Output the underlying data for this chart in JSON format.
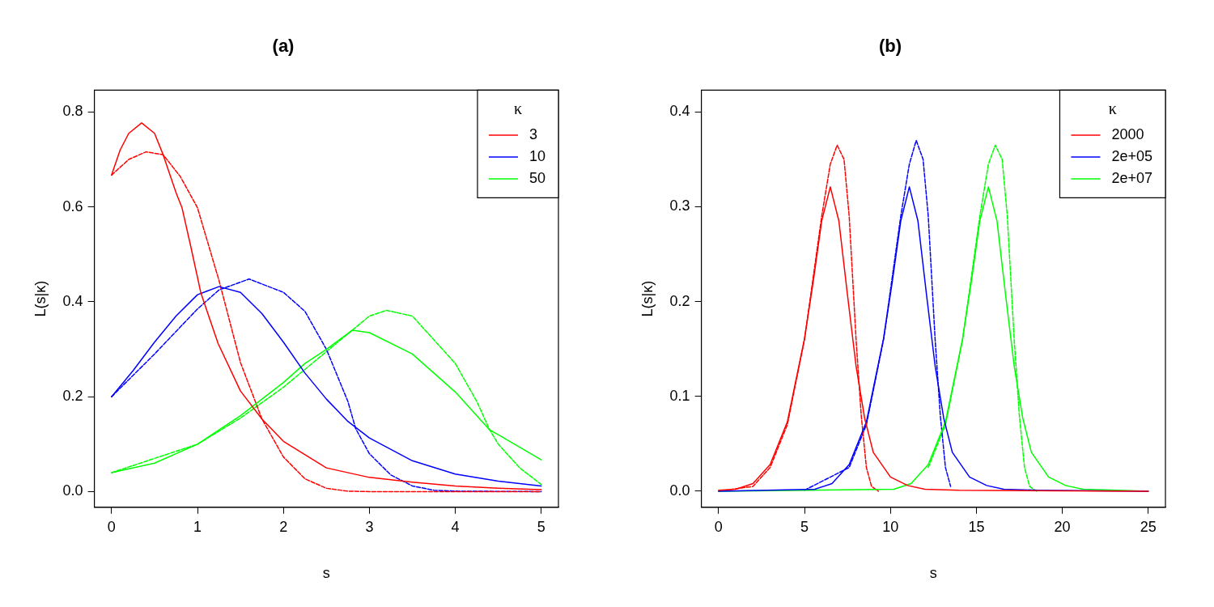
{
  "chart_data": [
    {
      "type": "line",
      "title": "(a)",
      "xlabel": "s",
      "ylabel": "L(s|κ)",
      "legend_title": "κ",
      "legend": "top right",
      "xlim": [
        -0.2,
        5.2
      ],
      "ylim": [
        -0.033,
        0.846
      ],
      "xticks": [
        0,
        1,
        2,
        3,
        4,
        5
      ],
      "yticks": [
        {
          "value": 0,
          "label": "0.0"
        },
        0.2,
        0.4,
        0.6,
        0.8
      ],
      "series": [
        {
          "name": "3",
          "color": "#ff0000",
          "line_style": "solid",
          "x": [
            0,
            0.1,
            0.2,
            0.35,
            0.5,
            0.6,
            0.75,
            0.82,
            0.92,
            1.04,
            1.24,
            1.5,
            1.75,
            2,
            2.5,
            3,
            3.5,
            4,
            4.5,
            5
          ],
          "values": [
            0.667,
            0.72,
            0.755,
            0.777,
            0.755,
            0.71,
            0.63,
            0.598,
            0.518,
            0.418,
            0.312,
            0.212,
            0.153,
            0.106,
            0.05,
            0.03,
            0.02,
            0.012,
            0.007,
            0.004
          ]
        },
        {
          "name": "10",
          "color": "#0000ff",
          "line_style": "solid",
          "x": [
            0,
            0.25,
            0.5,
            0.75,
            1,
            1.25,
            1.5,
            1.75,
            2,
            2.25,
            2.5,
            2.75,
            3,
            3.5,
            4,
            4.5,
            5
          ],
          "values": [
            0.2,
            0.255,
            0.315,
            0.37,
            0.415,
            0.432,
            0.42,
            0.375,
            0.315,
            0.25,
            0.195,
            0.148,
            0.113,
            0.065,
            0.037,
            0.022,
            0.012
          ]
        },
        {
          "name": "50",
          "color": "#00ff00",
          "line_style": "solid",
          "x": [
            0,
            0.5,
            1,
            1.5,
            2,
            2.25,
            2.5,
            2.8,
            3,
            3.5,
            4,
            4.4,
            4.5,
            5
          ],
          "values": [
            0.04,
            0.06,
            0.1,
            0.16,
            0.23,
            0.27,
            0.3,
            0.34,
            0.335,
            0.29,
            0.21,
            0.13,
            0.12,
            0.067
          ]
        },
        {
          "color": "#ff0000",
          "line_style": "dashed",
          "x": [
            0,
            0.2,
            0.4,
            0.6,
            0.8,
            1,
            1.25,
            1.5,
            1.75,
            2,
            2.25,
            2.5,
            2.75,
            3,
            4,
            5
          ],
          "values": [
            0.667,
            0.7,
            0.716,
            0.71,
            0.664,
            0.598,
            0.445,
            0.272,
            0.153,
            0.073,
            0.027,
            0.007,
            0.001,
            0,
            0,
            0
          ]
        },
        {
          "color": "#0000ff",
          "line_style": "dashed",
          "x": [
            0,
            0.5,
            1,
            1.25,
            1.6,
            2,
            2.25,
            2.5,
            2.75,
            2.84,
            3,
            3.25,
            3.5,
            3.75,
            4,
            5
          ],
          "values": [
            0.2,
            0.29,
            0.385,
            0.425,
            0.448,
            0.42,
            0.38,
            0.3,
            0.19,
            0.133,
            0.08,
            0.035,
            0.012,
            0.003,
            0.001,
            0
          ]
        },
        {
          "color": "#00ff00",
          "line_style": "dashed",
          "x": [
            0,
            1,
            1.5,
            2,
            2.5,
            3,
            3.2,
            3.5,
            4,
            4.25,
            4.4,
            4.5,
            4.75,
            5
          ],
          "values": [
            0.04,
            0.1,
            0.155,
            0.22,
            0.295,
            0.37,
            0.382,
            0.37,
            0.27,
            0.19,
            0.13,
            0.1,
            0.05,
            0.015
          ]
        }
      ]
    },
    {
      "type": "line",
      "title": "(b)",
      "xlabel": "s",
      "ylabel": "L(s|κ)",
      "legend_title": "κ",
      "legend": "top right",
      "xlim": [
        -1,
        26
      ],
      "ylim": [
        -0.017,
        0.423
      ],
      "xticks": [
        0,
        5,
        10,
        15,
        20,
        25
      ],
      "yticks": [
        {
          "value": 0,
          "label": "0.0"
        },
        0.1,
        0.2,
        0.3,
        0.4
      ],
      "series": [
        {
          "name": "2000",
          "color": "#ff0000",
          "line_style": "solid",
          "x": [
            0,
            1,
            2,
            3,
            4,
            5,
            5.5,
            6,
            6.5,
            7,
            7.5,
            8,
            8.5,
            9,
            10,
            11,
            12,
            14,
            25
          ],
          "values": [
            0.001,
            0.002,
            0.008,
            0.028,
            0.073,
            0.161,
            0.22,
            0.285,
            0.321,
            0.285,
            0.207,
            0.132,
            0.077,
            0.041,
            0.015,
            0.006,
            0.002,
            0.001,
            0
          ]
        },
        {
          "name": "2e+05",
          "color": "#0000ff",
          "line_style": "solid",
          "x": [
            0,
            5.6,
            6.6,
            7.6,
            8.6,
            9.6,
            10.1,
            10.6,
            11.1,
            11.6,
            12.1,
            12.6,
            13.1,
            13.6,
            14.6,
            15.6,
            16.6,
            18.6,
            25
          ],
          "values": [
            0,
            0.002,
            0.008,
            0.028,
            0.073,
            0.161,
            0.22,
            0.285,
            0.321,
            0.285,
            0.207,
            0.132,
            0.077,
            0.041,
            0.015,
            0.006,
            0.002,
            0.001,
            0
          ]
        },
        {
          "name": "2e+07",
          "color": "#00ff00",
          "line_style": "solid",
          "x": [
            0,
            10.2,
            11.2,
            12.2,
            13.2,
            14.2,
            14.7,
            15.2,
            15.7,
            16.2,
            16.7,
            17.2,
            17.7,
            18.2,
            19.2,
            20.2,
            21.2,
            23.2,
            25
          ],
          "values": [
            0,
            0.002,
            0.008,
            0.028,
            0.073,
            0.161,
            0.22,
            0.285,
            0.321,
            0.285,
            0.207,
            0.132,
            0.077,
            0.041,
            0.015,
            0.006,
            0.002,
            0.001,
            0
          ]
        },
        {
          "color": "#ff0000",
          "line_style": "dashed",
          "x": [
            0,
            2,
            3,
            4,
            5,
            5.5,
            6,
            6.5,
            6.9,
            7.3,
            7.6,
            8,
            8.3,
            8.6,
            8.9,
            9.3
          ],
          "values": [
            0,
            0.005,
            0.025,
            0.07,
            0.16,
            0.225,
            0.29,
            0.345,
            0.365,
            0.35,
            0.29,
            0.16,
            0.08,
            0.025,
            0.005,
            0
          ]
        },
        {
          "color": "#0000ff",
          "line_style": "dashed",
          "x": [
            5,
            7.6,
            8.6,
            9.6,
            10.1,
            10.6,
            11.1,
            11.5,
            11.9,
            12.2,
            12.6,
            12.9,
            13.2,
            13.5
          ],
          "values": [
            0.001,
            0.025,
            0.07,
            0.16,
            0.225,
            0.29,
            0.345,
            0.37,
            0.35,
            0.29,
            0.16,
            0.08,
            0.025,
            0.005
          ]
        },
        {
          "color": "#00ff00",
          "line_style": "dashed",
          "x": [
            12.2,
            13.2,
            14.2,
            14.7,
            15.2,
            15.7,
            16.1,
            16.5,
            16.8,
            17.2,
            17.5,
            17.8,
            18.1,
            18.5
          ],
          "values": [
            0.025,
            0.07,
            0.16,
            0.225,
            0.29,
            0.345,
            0.365,
            0.35,
            0.29,
            0.16,
            0.08,
            0.025,
            0.005,
            0
          ]
        }
      ]
    }
  ]
}
